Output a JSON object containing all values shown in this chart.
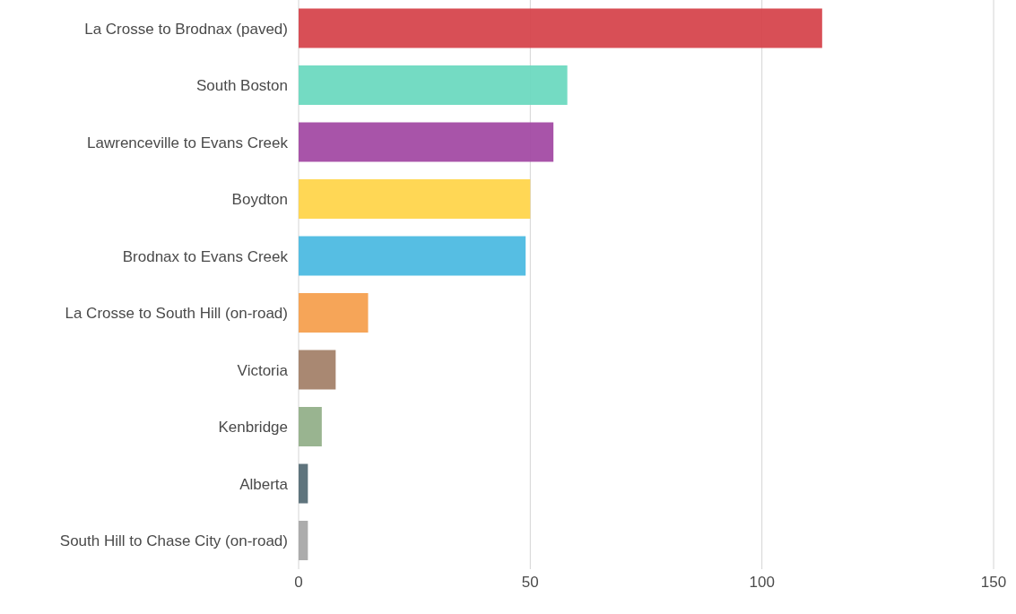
{
  "chart_data": {
    "type": "bar",
    "orientation": "horizontal",
    "categories": [
      "La Crosse to Brodnax (paved)",
      "South Boston",
      "Lawrenceville to Evans Creek",
      "Boydton",
      "Brodnax to Evans Creek",
      "La Crosse to South Hill (on-road)",
      "Victoria",
      "Kenbridge",
      "Alberta",
      "South Hill to Chase City (on-road)"
    ],
    "values": [
      113,
      58,
      55,
      50,
      49,
      15,
      8,
      5,
      2,
      2
    ],
    "colors": [
      "#d6464d",
      "#6dd9c0",
      "#a34ba4",
      "#ffd54c",
      "#4dbae2",
      "#f5a04f",
      "#a4826a",
      "#93b08a",
      "#566d76",
      "#a8a8a8"
    ],
    "xlim": [
      0,
      150
    ],
    "xticks": [
      0,
      50,
      100,
      150
    ],
    "grid": "x"
  }
}
